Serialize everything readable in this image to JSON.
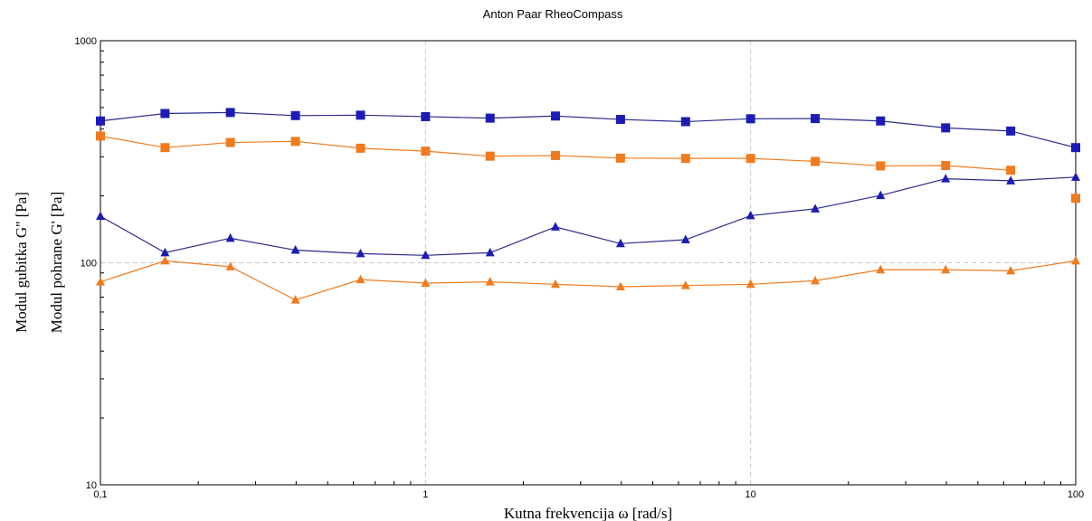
{
  "chart_data": {
    "type": "line",
    "title": "Anton Paar RheoCompass",
    "xlabel": "Kutna frekvencija ω [rad/s]",
    "ylabels": [
      "Modul gubitka G'' [Pa]",
      "Modul pohrane G' [Pa]"
    ],
    "xscale": "log",
    "yscale": "log",
    "xlim": [
      0.1,
      100
    ],
    "ylim": [
      10,
      1000
    ],
    "x_ticks": [
      {
        "value": 0.1,
        "label": "0,1"
      },
      {
        "value": 1,
        "label": "1"
      },
      {
        "value": 10,
        "label": "10"
      },
      {
        "value": 100,
        "label": "100"
      }
    ],
    "y_ticks": [
      {
        "value": 10,
        "label": "10"
      },
      {
        "value": 100,
        "label": "100"
      },
      {
        "value": 1000,
        "label": "1000"
      }
    ],
    "grid": "dashed at decades",
    "legend": "none",
    "series": [
      {
        "marker": "square",
        "color": "#1c1cb4",
        "line_color": "#2b2b8c",
        "x": [
          0.1,
          0.158,
          0.251,
          0.398,
          0.631,
          1,
          1.58,
          2.51,
          3.98,
          6.31,
          10,
          15.8,
          25.1,
          39.8,
          63.1,
          100
        ],
        "y": [
          435,
          470,
          475,
          460,
          462,
          455,
          448,
          458,
          442,
          432,
          445,
          446,
          435,
          405,
          392,
          330
        ]
      },
      {
        "marker": "square",
        "color": "#f07b1e",
        "line_color": "#f07b1e",
        "x": [
          0.1,
          0.158,
          0.251,
          0.398,
          0.631,
          1,
          1.58,
          2.51,
          3.98,
          6.31,
          10,
          15.8,
          25.1,
          39.8,
          63.1
        ],
        "y": [
          372,
          330,
          348,
          352,
          328,
          318,
          302,
          304,
          296,
          295,
          295,
          286,
          273,
          274,
          261
        ],
        "detached_points": [
          {
            "x": 100,
            "y": 195
          }
        ]
      },
      {
        "marker": "triangle",
        "color": "#1c1cb4",
        "line_color": "#2b2b8c",
        "x": [
          0.1,
          0.158,
          0.251,
          0.398,
          0.631,
          1,
          1.58,
          2.51,
          3.98,
          6.31,
          10,
          15.8,
          25.1,
          39.8,
          63.1,
          100
        ],
        "y": [
          162,
          111,
          129,
          114,
          110,
          108,
          111,
          145,
          122,
          127,
          163,
          175,
          201,
          239,
          234,
          243
        ]
      },
      {
        "marker": "triangle",
        "color": "#f07b1e",
        "line_color": "#f07b1e",
        "x": [
          0.1,
          0.158,
          0.251,
          0.398,
          0.631,
          1,
          1.58,
          2.51,
          3.98,
          6.31,
          10,
          15.8,
          25.1,
          39.8,
          63.1,
          100
        ],
        "y": [
          82,
          102,
          96,
          68,
          84,
          81,
          82,
          80,
          78,
          79,
          80,
          83,
          93,
          93,
          92,
          102
        ]
      }
    ]
  }
}
